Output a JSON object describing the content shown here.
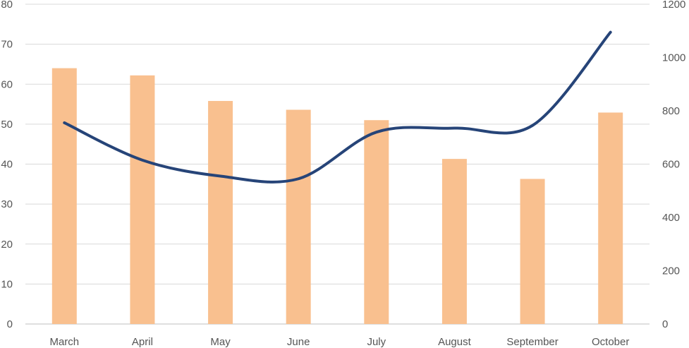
{
  "chart_data": {
    "type": "bar",
    "categories": [
      "March",
      "April",
      "May",
      "June",
      "July",
      "August",
      "September",
      "October"
    ],
    "series": [
      {
        "kind": "bar",
        "axis": "left",
        "values": [
          64,
          62.2,
          55.8,
          53.6,
          51,
          41.3,
          36.3,
          52.9
        ]
      },
      {
        "kind": "line",
        "axis": "right",
        "smooth": true,
        "values": [
          755,
          615,
          555,
          545,
          720,
          735,
          745,
          1095
        ]
      }
    ],
    "left_axis": {
      "min": 0,
      "max": 80,
      "step": 10,
      "ticks": [
        "0",
        "10",
        "20",
        "30",
        "40",
        "50",
        "60",
        "70",
        "80"
      ]
    },
    "right_axis": {
      "min": 0,
      "max": 1200,
      "step": 200,
      "ticks": [
        "0",
        "200",
        "400",
        "600",
        "800",
        "1000",
        "1200"
      ]
    },
    "grid": true,
    "legend": "none",
    "colors": {
      "bar": "#f9c08f",
      "line": "#264478",
      "grid": "#d9d9d9",
      "text": "#555555"
    }
  }
}
